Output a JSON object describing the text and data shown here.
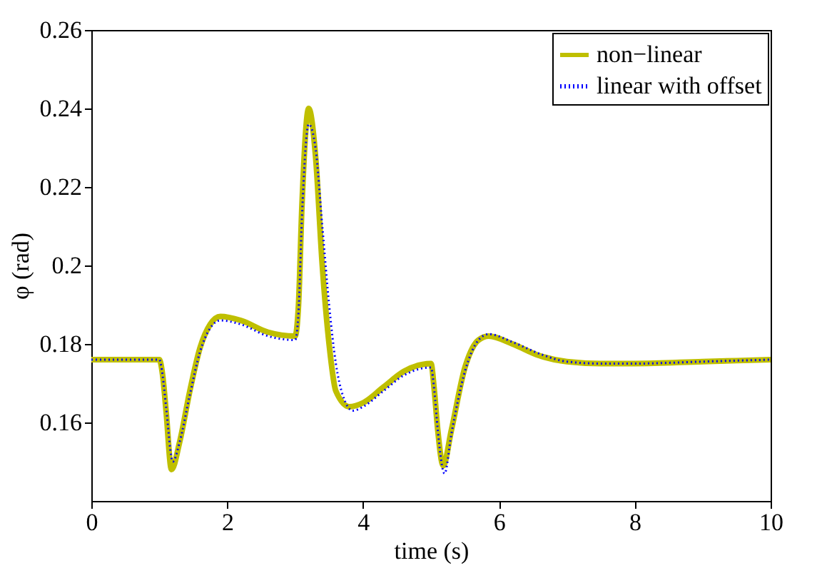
{
  "chart_data": {
    "type": "line",
    "xlabel": "time (s)",
    "ylabel": "φ (rad)",
    "xlim": [
      0,
      10
    ],
    "ylim": [
      0.14,
      0.26
    ],
    "xticks": [
      0,
      2,
      4,
      6,
      8,
      10
    ],
    "yticks": [
      0.16,
      0.18,
      {
        "value": 0.2,
        "label": "0.2"
      },
      0.22,
      0.24,
      0.26
    ],
    "grid": false,
    "legend": "top right",
    "series": [
      {
        "name": "non−linear",
        "color": "#bfbf00",
        "line_style": "solid",
        "x": [
          0,
          1.0,
          1.05,
          1.1,
          1.18,
          1.3,
          1.45,
          1.6,
          1.75,
          1.9,
          2.2,
          2.6,
          3.0,
          3.05,
          3.1,
          3.2,
          3.3,
          3.4,
          3.5,
          3.6,
          3.8,
          4.0,
          4.3,
          4.6,
          5.0,
          5.05,
          5.1,
          5.18,
          5.3,
          5.5,
          5.7,
          5.85,
          6.2,
          6.6,
          7.0,
          7.5,
          8.0,
          9.0,
          10.0
        ],
        "values": [
          0.176,
          0.176,
          0.172,
          0.163,
          0.148,
          0.155,
          0.168,
          0.179,
          0.185,
          0.187,
          0.186,
          0.183,
          0.182,
          0.19,
          0.215,
          0.24,
          0.228,
          0.2,
          0.18,
          0.168,
          0.164,
          0.165,
          0.169,
          0.173,
          0.175,
          0.168,
          0.158,
          0.149,
          0.158,
          0.174,
          0.181,
          0.182,
          0.18,
          0.177,
          0.1755,
          0.175,
          0.175,
          0.1755,
          0.176
        ]
      },
      {
        "name": "linear with offset",
        "color": "#0000ff",
        "line_style": "dotted",
        "x": [
          0,
          1.0,
          1.05,
          1.1,
          1.2,
          1.3,
          1.45,
          1.6,
          1.75,
          1.9,
          2.2,
          2.6,
          3.0,
          3.05,
          3.1,
          3.2,
          3.3,
          3.4,
          3.5,
          3.6,
          3.7,
          3.85,
          4.0,
          4.3,
          4.6,
          5.0,
          5.05,
          5.1,
          5.2,
          5.3,
          5.5,
          5.7,
          5.85,
          6.2,
          6.6,
          7.0,
          7.5,
          8.0,
          9.0,
          10.0
        ],
        "values": [
          0.176,
          0.176,
          0.172,
          0.164,
          0.15,
          0.155,
          0.167,
          0.178,
          0.184,
          0.186,
          0.185,
          0.182,
          0.181,
          0.188,
          0.212,
          0.236,
          0.23,
          0.21,
          0.19,
          0.175,
          0.167,
          0.163,
          0.164,
          0.168,
          0.172,
          0.174,
          0.168,
          0.158,
          0.147,
          0.157,
          0.173,
          0.181,
          0.1825,
          0.1805,
          0.1775,
          0.1755,
          0.175,
          0.175,
          0.1755,
          0.176
        ]
      }
    ]
  }
}
